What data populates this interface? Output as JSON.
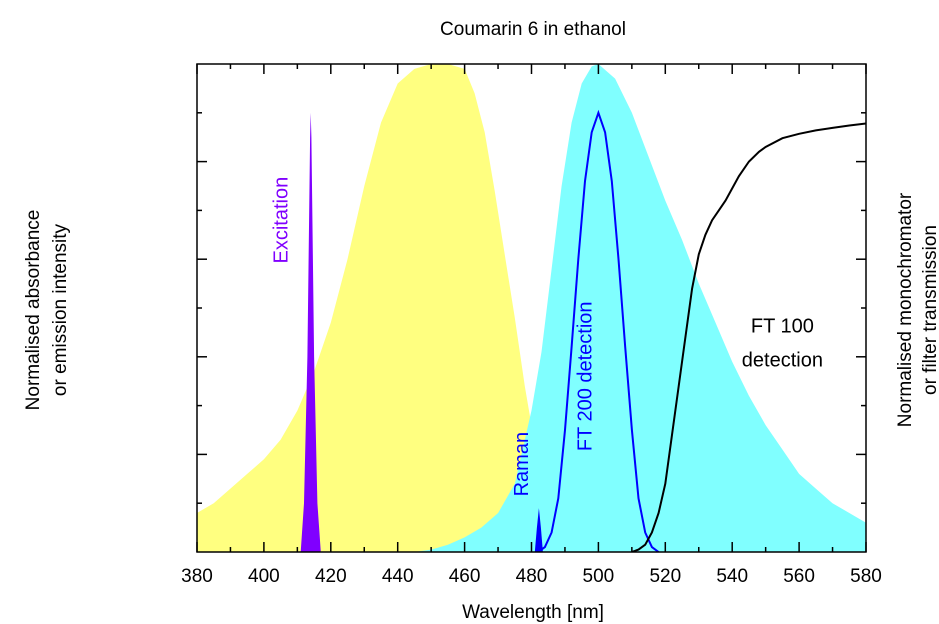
{
  "chart_data": {
    "type": "area",
    "title": "Coumarin 6 in ethanol",
    "xlabel": "Wavelength [nm]",
    "ylabel_left": [
      "Normalised absorbance",
      "or emission intensity"
    ],
    "ylabel_right": [
      "Normalised monochromator",
      "or filter transmission"
    ],
    "xlim": [
      380,
      580
    ],
    "ylim": [
      0,
      1.0
    ],
    "x_ticks": [
      380,
      400,
      420,
      440,
      460,
      480,
      500,
      520,
      540,
      560,
      580
    ],
    "y_tick_labels_shown": false,
    "grid": false,
    "series": [
      {
        "kind": "filled-area",
        "color": "#ffff80",
        "x": [
          380,
          385,
          390,
          395,
          400,
          405,
          410,
          415,
          420,
          425,
          430,
          435,
          440,
          445,
          450,
          455,
          460,
          463,
          466,
          469,
          472,
          475,
          478,
          481,
          484,
          487,
          490,
          493,
          496,
          500
        ],
        "y": [
          0.08,
          0.1,
          0.13,
          0.16,
          0.19,
          0.23,
          0.29,
          0.37,
          0.47,
          0.6,
          0.75,
          0.88,
          0.96,
          0.99,
          1.0,
          1.0,
          0.99,
          0.94,
          0.86,
          0.74,
          0.61,
          0.48,
          0.34,
          0.22,
          0.13,
          0.07,
          0.03,
          0.012,
          0.004,
          0.0
        ]
      },
      {
        "kind": "filled-area",
        "color": "#80ffff",
        "x": [
          445,
          450,
          455,
          460,
          465,
          470,
          475,
          480,
          483,
          486,
          489,
          492,
          495,
          498,
          500,
          505,
          510,
          515,
          520,
          525,
          530,
          535,
          540,
          545,
          550,
          555,
          560,
          565,
          570,
          575,
          580
        ],
        "y": [
          0.0,
          0.005,
          0.015,
          0.03,
          0.05,
          0.08,
          0.14,
          0.29,
          0.41,
          0.58,
          0.75,
          0.88,
          0.96,
          0.995,
          1.0,
          0.97,
          0.9,
          0.81,
          0.72,
          0.64,
          0.55,
          0.47,
          0.39,
          0.32,
          0.26,
          0.21,
          0.16,
          0.13,
          0.1,
          0.08,
          0.06
        ]
      },
      {
        "kind": "filled-spike",
        "name": "Excitation",
        "color": "#8000ff",
        "x": [
          411,
          412,
          413,
          413.8,
          414,
          414.2,
          415,
          416,
          417
        ],
        "y": [
          0.0,
          0.1,
          0.4,
          0.85,
          0.9,
          0.85,
          0.4,
          0.1,
          0.0
        ]
      },
      {
        "kind": "filled-spike",
        "name": "Raman",
        "color": "#0000ff",
        "x": [
          481,
          481.6,
          482.2,
          482.8,
          483.4
        ],
        "y": [
          0.0,
          0.05,
          0.09,
          0.05,
          0.0
        ]
      },
      {
        "kind": "line",
        "name": "FT 200 detection",
        "color": "#0000ff",
        "x": [
          482,
          484,
          486,
          488,
          490,
          492,
          494,
          496,
          498,
          500,
          502,
          504,
          506,
          508,
          510,
          512,
          514,
          516,
          518
        ],
        "y": [
          0.0,
          0.01,
          0.04,
          0.11,
          0.25,
          0.42,
          0.6,
          0.76,
          0.86,
          0.9,
          0.86,
          0.76,
          0.6,
          0.42,
          0.25,
          0.11,
          0.04,
          0.01,
          0.0
        ]
      },
      {
        "kind": "line",
        "name": "FT 100 detection",
        "color": "#000000",
        "x": [
          510,
          512,
          514,
          516,
          518,
          520,
          522,
          524,
          526,
          528,
          530,
          532,
          534,
          536,
          538,
          540,
          542,
          545,
          548,
          550,
          555,
          560,
          565,
          570,
          575,
          580
        ],
        "y": [
          0.0,
          0.005,
          0.015,
          0.04,
          0.08,
          0.14,
          0.24,
          0.34,
          0.44,
          0.54,
          0.61,
          0.65,
          0.68,
          0.7,
          0.72,
          0.745,
          0.77,
          0.8,
          0.82,
          0.83,
          0.848,
          0.857,
          0.864,
          0.869,
          0.874,
          0.878
        ]
      }
    ],
    "annotations": [
      {
        "text": "Excitation",
        "color": "#8000ff",
        "x": 407,
        "y": 0.68,
        "rotation": -90
      },
      {
        "text": "Raman",
        "color": "#0000ff",
        "x": 479,
        "y": 0.18,
        "rotation": -90
      },
      {
        "text": "FT 200 detection",
        "color": "#0000ff",
        "x": 498,
        "y": 0.36,
        "rotation": -90
      },
      {
        "text": "FT 100",
        "color": "#000000",
        "x": 555,
        "y": 0.45,
        "rotation": 0
      },
      {
        "text": "detection",
        "color": "#000000",
        "x": 555,
        "y": 0.38,
        "rotation": 0
      }
    ]
  }
}
